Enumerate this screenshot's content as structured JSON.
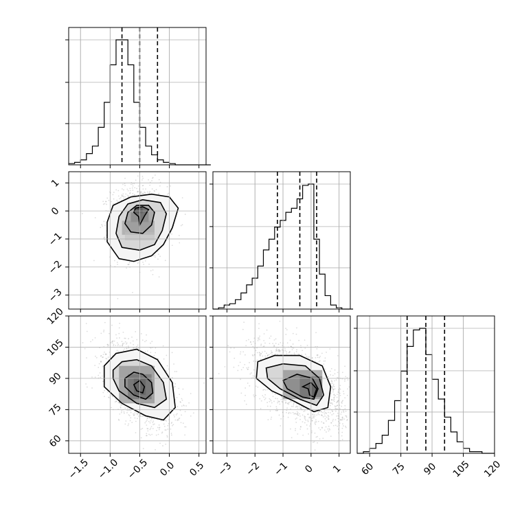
{
  "chart_data": {
    "type": "corner",
    "title": "",
    "xlabel": "",
    "ylabel": "",
    "parameters": [
      {
        "range": [
          -1.7,
          0.62
        ],
        "ticks": [
          -1.5,
          -1.0,
          -0.5,
          0.0,
          0.5
        ],
        "tick_labels": [
          "−1.5",
          "−1.0",
          "−0.5",
          "0.0",
          "0.5"
        ],
        "quantiles": [
          -0.8,
          -0.5,
          -0.2
        ],
        "hist_x0": -1.7,
        "hist_bw": 0.1,
        "hist": [
          1,
          2,
          4,
          9,
          15,
          30,
          50,
          80,
          100,
          100,
          80,
          50,
          30,
          15,
          8,
          4,
          2,
          1,
          0,
          0,
          0,
          0,
          0,
          0
        ]
      },
      {
        "range": [
          -3.5,
          1.4
        ],
        "ticks": [
          -3,
          -2,
          -1,
          0,
          1
        ],
        "tick_labels": [
          "−3",
          "−2",
          "−1",
          "0",
          "1"
        ],
        "quantiles": [
          -1.2,
          -0.4,
          0.2
        ],
        "hist_x0": -3.5,
        "hist_bw": 0.2,
        "hist": [
          0,
          1,
          3,
          4,
          7,
          12,
          18,
          23,
          32,
          44,
          52,
          61,
          66,
          72,
          75,
          82,
          92,
          93,
          52,
          26,
          10,
          3,
          1,
          0,
          0
        ]
      },
      {
        "range": [
          54,
          120
        ],
        "ticks": [
          60,
          75,
          90,
          105,
          120
        ],
        "tick_labels": [
          "60",
          "75",
          "90",
          "105",
          "120"
        ],
        "quantiles": [
          78,
          87,
          96
        ],
        "hist_x0": 54,
        "hist_bw": 3,
        "hist": [
          0,
          1,
          3,
          6,
          11,
          20,
          32,
          50,
          65,
          75,
          76,
          60,
          45,
          33,
          22,
          13,
          7,
          3,
          1,
          1,
          0,
          0
        ]
      }
    ],
    "pairs": [
      {
        "row": 1,
        "col": 0,
        "cx": -0.5,
        "cy": -0.4,
        "sx": 0.24,
        "sy": 0.65,
        "rho": 0.0,
        "n": 1400,
        "contours": [
          [
            [
              -0.85,
              -1.7
            ],
            [
              -0.6,
              -1.8
            ],
            [
              -0.3,
              -1.6
            ],
            [
              -0.1,
              -1.2
            ],
            [
              0.05,
              -0.6
            ],
            [
              0.15,
              0.1
            ],
            [
              0.0,
              0.5
            ],
            [
              -0.3,
              0.6
            ],
            [
              -0.65,
              0.5
            ],
            [
              -0.95,
              0.2
            ],
            [
              -1.05,
              -0.4
            ],
            [
              -1.05,
              -1.1
            ]
          ],
          [
            [
              -0.8,
              -1.3
            ],
            [
              -0.5,
              -1.4
            ],
            [
              -0.25,
              -1.2
            ],
            [
              -0.12,
              -0.7
            ],
            [
              -0.05,
              -0.1
            ],
            [
              -0.15,
              0.3
            ],
            [
              -0.45,
              0.4
            ],
            [
              -0.7,
              0.25
            ],
            [
              -0.85,
              -0.2
            ],
            [
              -0.9,
              -0.8
            ]
          ],
          [
            [
              -0.65,
              -0.75
            ],
            [
              -0.45,
              -0.8
            ],
            [
              -0.3,
              -0.5
            ],
            [
              -0.25,
              -0.05
            ],
            [
              -0.35,
              0.2
            ],
            [
              -0.55,
              0.2
            ],
            [
              -0.7,
              -0.05
            ],
            [
              -0.75,
              -0.45
            ]
          ],
          [
            [
              -0.57,
              0.1
            ],
            [
              -0.45,
              0.15
            ],
            [
              -0.35,
              0.05
            ],
            [
              -0.42,
              -0.18
            ],
            [
              -0.5,
              -0.5
            ],
            [
              -0.52,
              -0.2
            ],
            [
              -0.6,
              -0.05
            ]
          ]
        ],
        "density_cells": [
          [
            -0.55,
            0.05,
            0.05,
            0.1
          ],
          [
            -0.6,
            -0.1,
            0.15,
            0.25
          ],
          [
            -0.65,
            -0.4,
            0.3,
            0.35
          ],
          [
            -0.8,
            -0.85,
            0.55,
            0.5
          ],
          [
            -0.75,
            -1.05,
            0.5,
            0.3
          ]
        ]
      },
      {
        "row": 2,
        "col": 0,
        "cx": -0.5,
        "cy": 87,
        "sx": 0.3,
        "sy": 10,
        "rho": -0.5,
        "n": 1800,
        "contours": [
          [
            [
              -1.1,
              96
            ],
            [
              -0.9,
              102
            ],
            [
              -0.55,
              104
            ],
            [
              -0.2,
              99
            ],
            [
              0.05,
              88
            ],
            [
              0.1,
              76
            ],
            [
              -0.1,
              70
            ],
            [
              -0.4,
              72
            ],
            [
              -0.8,
              78
            ],
            [
              -1.1,
              86
            ]
          ],
          [
            [
              -0.95,
              94
            ],
            [
              -0.8,
              98
            ],
            [
              -0.55,
              99
            ],
            [
              -0.3,
              96
            ],
            [
              -0.1,
              88
            ],
            [
              -0.05,
              80
            ],
            [
              -0.25,
              76
            ],
            [
              -0.55,
              78
            ],
            [
              -0.85,
              84
            ],
            [
              -0.95,
              90
            ]
          ],
          [
            [
              -0.75,
              90
            ],
            [
              -0.6,
              93
            ],
            [
              -0.45,
              92
            ],
            [
              -0.3,
              88
            ],
            [
              -0.28,
              83
            ],
            [
              -0.4,
              80
            ],
            [
              -0.6,
              82
            ],
            [
              -0.75,
              86
            ]
          ],
          [
            [
              -0.6,
              87
            ],
            [
              -0.5,
              89
            ],
            [
              -0.42,
              86
            ],
            [
              -0.45,
              83
            ],
            [
              -0.55,
              84
            ]
          ]
        ],
        "density_cells": [
          [
            -0.6,
            82,
            0.2,
            8
          ],
          [
            -0.7,
            80,
            0.4,
            12
          ],
          [
            -0.85,
            78,
            0.6,
            18
          ]
        ]
      },
      {
        "row": 2,
        "col": 1,
        "cx": -0.4,
        "cy": 87,
        "sx": 0.8,
        "sy": 10,
        "rho": -0.5,
        "n": 1800,
        "contours": [
          [
            [
              -1.9,
              98
            ],
            [
              -1.3,
              101
            ],
            [
              -0.4,
              101
            ],
            [
              0.4,
              96
            ],
            [
              0.7,
              86
            ],
            [
              0.6,
              76
            ],
            [
              0.1,
              74
            ],
            [
              -0.6,
              79
            ],
            [
              -1.4,
              84
            ],
            [
              -1.95,
              90
            ]
          ],
          [
            [
              -1.6,
              95
            ],
            [
              -1.0,
              97
            ],
            [
              -0.2,
              96
            ],
            [
              0.3,
              90
            ],
            [
              0.45,
              82
            ],
            [
              0.2,
              77
            ],
            [
              -0.4,
              80
            ],
            [
              -1.1,
              85
            ],
            [
              -1.55,
              90
            ]
          ],
          [
            [
              -1.0,
              89
            ],
            [
              -0.5,
              92
            ],
            [
              0.05,
              90
            ],
            [
              0.25,
              85
            ],
            [
              0.1,
              80
            ],
            [
              -0.3,
              81
            ],
            [
              -0.85,
              85
            ]
          ],
          [
            [
              -0.3,
              86
            ],
            [
              0.0,
              88
            ],
            [
              0.2,
              85
            ],
            [
              0.1,
              81
            ],
            [
              -0.05,
              82
            ],
            [
              -0.1,
              85
            ]
          ]
        ],
        "density_cells": [
          [
            -0.1,
            82,
            0.3,
            5
          ],
          [
            -0.4,
            81,
            0.8,
            10
          ],
          [
            -1.0,
            80,
            1.4,
            14
          ]
        ]
      }
    ],
    "grid": true,
    "legend": "none"
  }
}
